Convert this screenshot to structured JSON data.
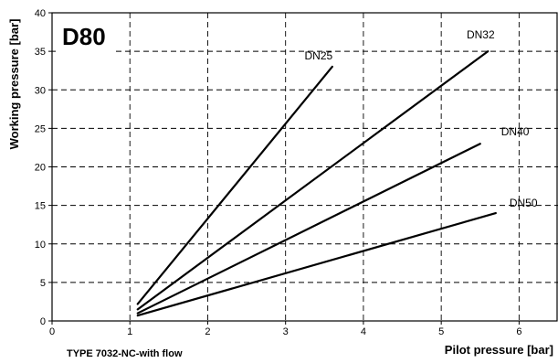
{
  "chart_data": {
    "type": "line",
    "title": "D80",
    "xlabel": "Pilot pressure [bar]",
    "ylabel": "Working pressure [bar]",
    "footnote": "TYPE 7032-NC-with flow",
    "xlim": [
      0,
      6.5
    ],
    "ylim": [
      0,
      40
    ],
    "xticks": [
      0,
      1,
      2,
      3,
      4,
      5,
      6
    ],
    "yticks": [
      0,
      5,
      10,
      15,
      20,
      25,
      30,
      35,
      40
    ],
    "grid": true,
    "series": [
      {
        "name": "DN25",
        "x": [
          1.1,
          3.6
        ],
        "y": [
          2.2,
          33.0
        ]
      },
      {
        "name": "DN32",
        "x": [
          1.1,
          5.6
        ],
        "y": [
          1.5,
          35.0
        ]
      },
      {
        "name": "DN40",
        "x": [
          1.1,
          5.5
        ],
        "y": [
          1.0,
          23.0
        ]
      },
      {
        "name": "DN50",
        "x": [
          1.1,
          5.7
        ],
        "y": [
          0.7,
          14.0
        ]
      }
    ]
  }
}
